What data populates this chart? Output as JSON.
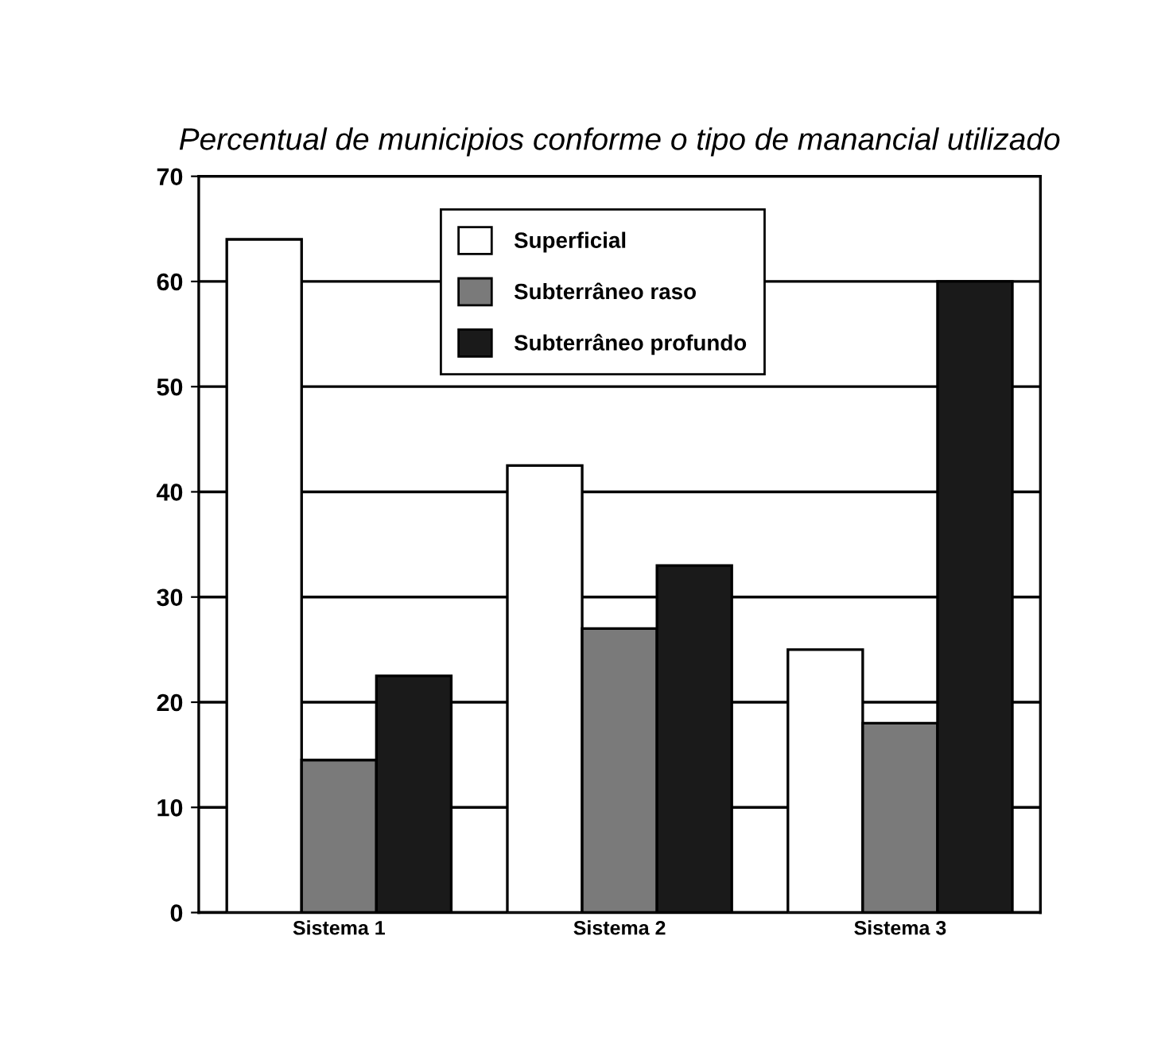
{
  "chart_data": {
    "type": "bar",
    "title": "Percentual de municipios conforme o tipo de manancial utilizado",
    "categories": [
      "Sistema 1",
      "Sistema 2",
      "Sistema 3"
    ],
    "series": [
      {
        "name": "Superficial",
        "color": "#ffffff",
        "values": [
          64,
          42.5,
          25
        ]
      },
      {
        "name": "Subterrâneo raso",
        "color": "#7a7a7a",
        "values": [
          14.5,
          27,
          18
        ]
      },
      {
        "name": "Subterrâneo profundo",
        "color": "#1a1a1a",
        "values": [
          22.5,
          33,
          60
        ]
      }
    ],
    "ylim": [
      0,
      70
    ],
    "yticks": [
      0,
      10,
      20,
      30,
      40,
      50,
      60,
      70
    ],
    "grid": "y",
    "legend": "top"
  }
}
